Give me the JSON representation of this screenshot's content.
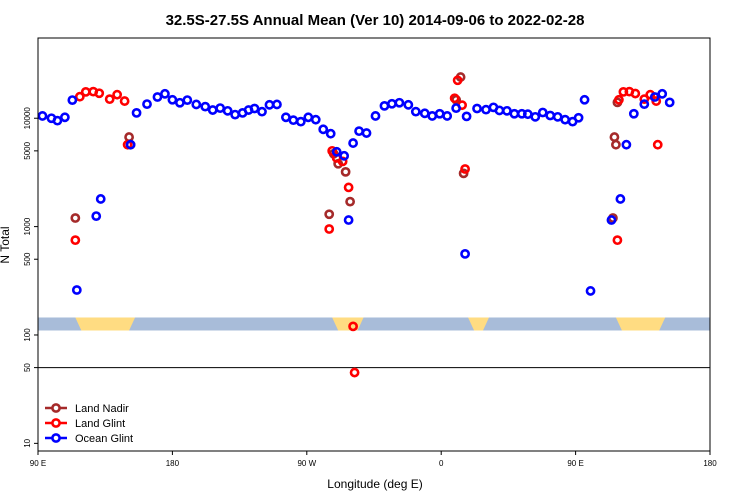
{
  "chart_data": {
    "type": "scatter",
    "title": "32.5S-27.5S Annual Mean (Ver 10)   2014-09-06 to 2022-02-28",
    "xlabel": "Longitude (deg E)",
    "ylabel": "N Total",
    "x_scale": "longitude, continuous from 90E eastward through 180 to 180 (one full circuit, data units as unwrapped degrees)",
    "xlim": [
      90,
      540
    ],
    "y_scale": "log",
    "ylim": [
      8.5,
      55000
    ],
    "x_ticks": [
      {
        "value": 90,
        "label": "90 E"
      },
      {
        "value": 180,
        "label": "180"
      },
      {
        "value": 270,
        "label": "90 W"
      },
      {
        "value": 360,
        "label": "0"
      },
      {
        "value": 450,
        "label": "90 E"
      },
      {
        "value": 540,
        "label": "180"
      }
    ],
    "y_ticks": [
      {
        "value": 10,
        "label": "10"
      },
      {
        "value": 50,
        "label": "50"
      },
      {
        "value": 100,
        "label": "100"
      },
      {
        "value": 500,
        "label": "500"
      },
      {
        "value": 1000,
        "label": "1000"
      },
      {
        "value": 5000,
        "label": "5000"
      },
      {
        "value": 10000,
        "label": "10000"
      }
    ],
    "reference_line": {
      "y": 50
    },
    "map_strip": {
      "y_range": [
        110,
        145
      ],
      "ocean_color": "#a8bcd9",
      "land_color": "#ffdc82",
      "land_segments": [
        [
          115,
          155
        ],
        [
          287,
          308
        ],
        [
          378,
          392
        ],
        [
          477,
          510
        ]
      ]
    },
    "legend_position": "bottom-left",
    "series": [
      {
        "name": "Land Nadir",
        "color": "#a52a2a",
        "points": [
          [
            115,
            1200
          ],
          [
            151,
            6700
          ],
          [
            152,
            5700
          ],
          [
            285,
            1300
          ],
          [
            288,
            4700
          ],
          [
            291,
            3800
          ],
          [
            296,
            3200
          ],
          [
            299,
            1700
          ],
          [
            370,
            14800
          ],
          [
            373,
            24000
          ],
          [
            375,
            3100
          ],
          [
            475,
            1200
          ],
          [
            476,
            6700
          ],
          [
            477,
            5700
          ],
          [
            478,
            14000
          ]
        ]
      },
      {
        "name": "Land Glint",
        "color": "#ff0000",
        "points": [
          [
            115,
            750
          ],
          [
            118,
            15800
          ],
          [
            122,
            17500
          ],
          [
            127,
            17600
          ],
          [
            131,
            17000
          ],
          [
            138,
            15000
          ],
          [
            143,
            16500
          ],
          [
            148,
            14400
          ],
          [
            150,
            5700
          ],
          [
            285,
            950
          ],
          [
            287,
            5000
          ],
          [
            290,
            4300
          ],
          [
            294,
            4000
          ],
          [
            298,
            2300
          ],
          [
            301,
            120
          ],
          [
            302,
            45
          ],
          [
            369,
            15300
          ],
          [
            371,
            22400
          ],
          [
            374,
            13200
          ],
          [
            376,
            3400
          ],
          [
            478,
            750
          ],
          [
            479,
            14800
          ],
          [
            482,
            17500
          ],
          [
            486,
            17600
          ],
          [
            490,
            16900
          ],
          [
            496,
            15000
          ],
          [
            500,
            16500
          ],
          [
            504,
            14400
          ],
          [
            505,
            5700
          ]
        ]
      },
      {
        "name": "Ocean Glint",
        "color": "#0000ff",
        "points": [
          [
            93,
            10500
          ],
          [
            99,
            10000
          ],
          [
            103,
            9500
          ],
          [
            108,
            10200
          ],
          [
            113,
            14700
          ],
          [
            116,
            260
          ],
          [
            129,
            1250
          ],
          [
            132,
            1800
          ],
          [
            152,
            5700
          ],
          [
            156,
            11200
          ],
          [
            163,
            13500
          ],
          [
            170,
            15700
          ],
          [
            175,
            16800
          ],
          [
            180,
            14800
          ],
          [
            185,
            13900
          ],
          [
            190,
            14700
          ],
          [
            196,
            13400
          ],
          [
            202,
            12800
          ],
          [
            207,
            11900
          ],
          [
            212,
            12400
          ],
          [
            217,
            11700
          ],
          [
            222,
            10800
          ],
          [
            227,
            11200
          ],
          [
            231,
            11900
          ],
          [
            235,
            12300
          ],
          [
            240,
            11500
          ],
          [
            245,
            13300
          ],
          [
            250,
            13400
          ],
          [
            256,
            10200
          ],
          [
            261,
            9600
          ],
          [
            266,
            9300
          ],
          [
            271,
            10200
          ],
          [
            276,
            9700
          ],
          [
            281,
            7900
          ],
          [
            286,
            7200
          ],
          [
            290,
            4900
          ],
          [
            295,
            4500
          ],
          [
            298,
            1150
          ],
          [
            301,
            5900
          ],
          [
            305,
            7600
          ],
          [
            310,
            7300
          ],
          [
            316,
            10500
          ],
          [
            322,
            13000
          ],
          [
            327,
            13600
          ],
          [
            332,
            13900
          ],
          [
            338,
            13300
          ],
          [
            343,
            11500
          ],
          [
            349,
            11100
          ],
          [
            354,
            10500
          ],
          [
            359,
            11000
          ],
          [
            364,
            10500
          ],
          [
            370,
            12400
          ],
          [
            376,
            560
          ],
          [
            377,
            10400
          ],
          [
            384,
            12300
          ],
          [
            390,
            12000
          ],
          [
            395,
            12600
          ],
          [
            399,
            11800
          ],
          [
            404,
            11700
          ],
          [
            409,
            11000
          ],
          [
            414,
            11000
          ],
          [
            418,
            10900
          ],
          [
            423,
            10300
          ],
          [
            428,
            11300
          ],
          [
            433,
            10600
          ],
          [
            438,
            10300
          ],
          [
            443,
            9700
          ],
          [
            448,
            9300
          ],
          [
            452,
            10100
          ],
          [
            456,
            14800
          ],
          [
            460,
            255
          ],
          [
            474,
            1150
          ],
          [
            480,
            1800
          ],
          [
            484,
            5700
          ],
          [
            489,
            11000
          ],
          [
            496,
            13500
          ],
          [
            503,
            15700
          ],
          [
            508,
            16800
          ],
          [
            513,
            14000
          ]
        ]
      }
    ]
  }
}
